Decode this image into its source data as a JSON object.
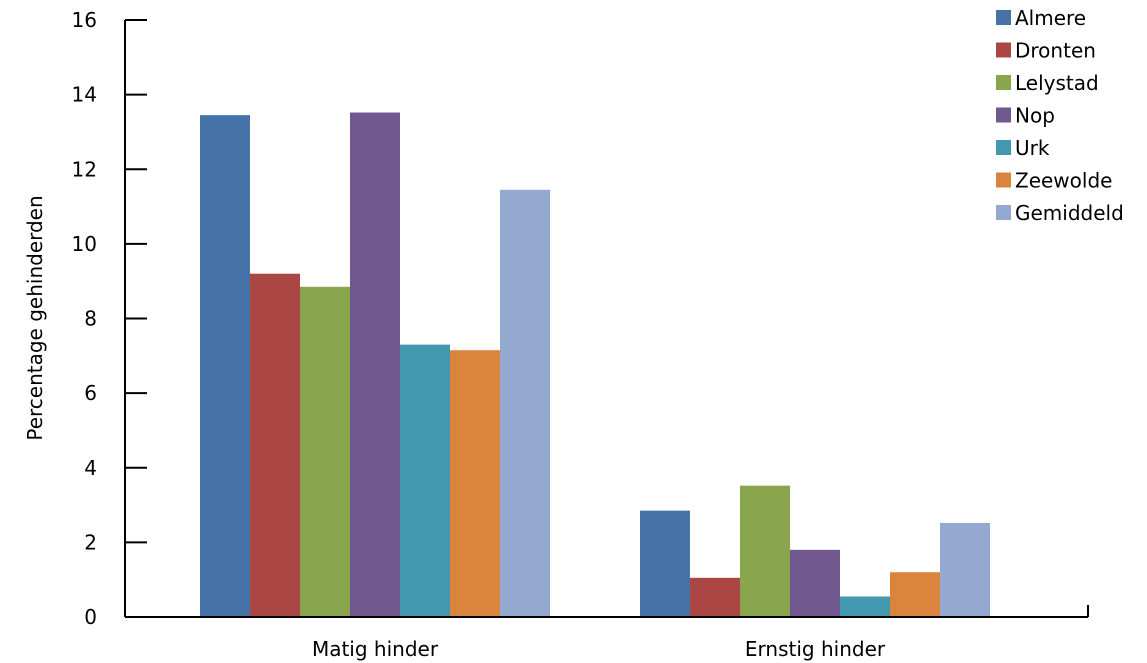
{
  "chart_data": {
    "type": "bar",
    "title": "",
    "xlabel": "",
    "ylabel": "Percentage gehinderden",
    "ylim": [
      0,
      16
    ],
    "yticks": [
      0,
      2,
      4,
      6,
      8,
      10,
      12,
      14,
      16
    ],
    "categories": [
      "Matig hinder",
      "Ernstig hinder"
    ],
    "grid": false,
    "legend_position": "top-right",
    "series": [
      {
        "name": "Almere",
        "color": "#4572a7",
        "values": [
          13.45,
          2.85
        ]
      },
      {
        "name": "Dronten",
        "color": "#aa4643",
        "values": [
          9.2,
          1.05
        ]
      },
      {
        "name": "Lelystad",
        "color": "#89a54e",
        "values": [
          8.85,
          3.52
        ]
      },
      {
        "name": "Nop",
        "color": "#71588f",
        "values": [
          13.52,
          1.8
        ]
      },
      {
        "name": "Urk",
        "color": "#4198af",
        "values": [
          7.3,
          0.55
        ]
      },
      {
        "name": "Zeewolde",
        "color": "#db843d",
        "values": [
          7.15,
          1.2
        ]
      },
      {
        "name": "Gemiddeld",
        "color": "#93a9cf",
        "values": [
          11.45,
          2.52
        ]
      }
    ]
  }
}
